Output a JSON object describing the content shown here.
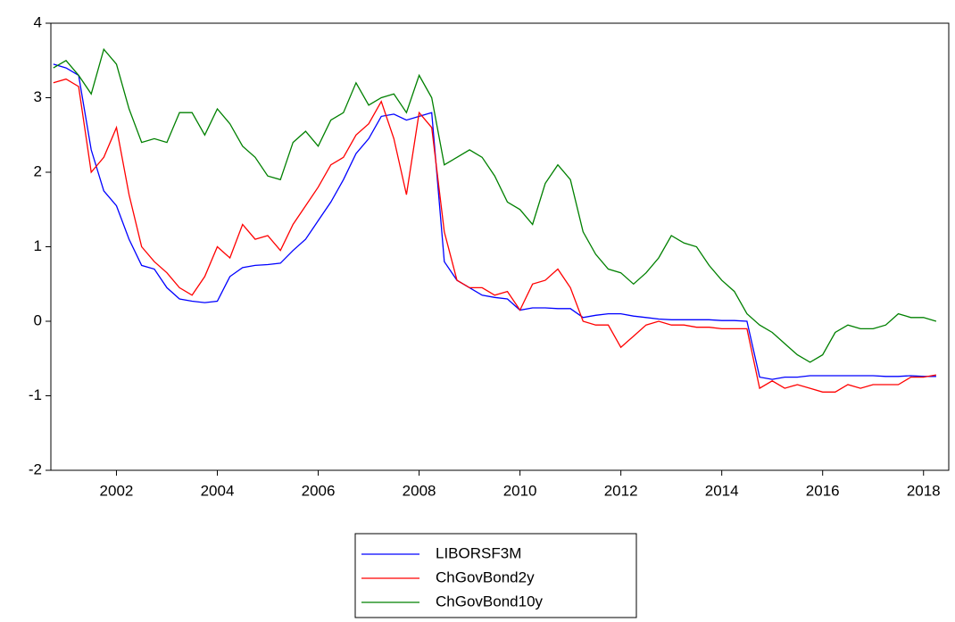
{
  "chart_data": {
    "type": "line",
    "x": [
      2001.25,
      2001.5,
      2001.75,
      2002.0,
      2002.25,
      2002.5,
      2002.75,
      2003.0,
      2003.25,
      2003.5,
      2003.75,
      2004.0,
      2004.25,
      2004.5,
      2004.75,
      2005.0,
      2005.25,
      2005.5,
      2005.75,
      2006.0,
      2006.25,
      2006.5,
      2006.75,
      2007.0,
      2007.25,
      2007.5,
      2007.75,
      2008.0,
      2008.25,
      2008.5,
      2008.75,
      2009.0,
      2009.25,
      2009.5,
      2009.75,
      2010.0,
      2010.25,
      2010.5,
      2010.75,
      2011.0,
      2011.25,
      2011.5,
      2011.75,
      2012.0,
      2012.25,
      2012.5,
      2012.75,
      2013.0,
      2013.25,
      2013.5,
      2013.75,
      2014.0,
      2014.25,
      2014.5,
      2014.75,
      2015.0,
      2015.25,
      2015.5,
      2015.75,
      2016.0,
      2016.25,
      2016.5,
      2016.75,
      2017.0,
      2017.25,
      2017.5,
      2017.75,
      2018.0,
      2018.25,
      2018.5,
      2018.75
    ],
    "series": [
      {
        "name": "LIBORSF3M",
        "color": "#0000ff",
        "values": [
          3.45,
          3.4,
          3.3,
          2.3,
          1.75,
          1.55,
          1.1,
          0.75,
          0.7,
          0.45,
          0.3,
          0.27,
          0.25,
          0.27,
          0.6,
          0.72,
          0.75,
          0.76,
          0.78,
          0.95,
          1.1,
          1.35,
          1.6,
          1.9,
          2.25,
          2.45,
          2.75,
          2.78,
          2.7,
          2.75,
          2.8,
          0.8,
          0.55,
          0.45,
          0.35,
          0.32,
          0.3,
          0.15,
          0.18,
          0.18,
          0.17,
          0.17,
          0.05,
          0.08,
          0.1,
          0.1,
          0.07,
          0.05,
          0.03,
          0.02,
          0.02,
          0.02,
          0.02,
          0.01,
          0.01,
          0.0,
          -0.75,
          -0.78,
          -0.75,
          -0.75,
          -0.73,
          -0.73,
          -0.73,
          -0.73,
          -0.73,
          -0.73,
          -0.74,
          -0.74,
          -0.73,
          -0.74,
          -0.74
        ]
      },
      {
        "name": "ChGovBond2y",
        "color": "#ff0000",
        "values": [
          3.2,
          3.25,
          3.15,
          2.0,
          2.2,
          2.6,
          1.7,
          1.0,
          0.8,
          0.65,
          0.45,
          0.35,
          0.6,
          1.0,
          0.85,
          1.3,
          1.1,
          1.15,
          0.95,
          1.3,
          1.55,
          1.8,
          2.1,
          2.2,
          2.5,
          2.65,
          2.95,
          2.45,
          1.7,
          2.8,
          2.6,
          1.2,
          0.55,
          0.45,
          0.45,
          0.35,
          0.4,
          0.15,
          0.5,
          0.55,
          0.7,
          0.45,
          0.0,
          -0.05,
          -0.05,
          -0.35,
          -0.2,
          -0.05,
          0.0,
          -0.05,
          -0.05,
          -0.08,
          -0.08,
          -0.1,
          -0.1,
          -0.1,
          -0.9,
          -0.8,
          -0.9,
          -0.85,
          -0.9,
          -0.95,
          -0.95,
          -0.85,
          -0.9,
          -0.85,
          -0.85,
          -0.85,
          -0.75,
          -0.75,
          -0.72
        ]
      },
      {
        "name": "ChGovBond10y",
        "color": "#008000",
        "values": [
          3.4,
          3.5,
          3.3,
          3.05,
          3.65,
          3.45,
          2.85,
          2.4,
          2.45,
          2.4,
          2.8,
          2.8,
          2.5,
          2.85,
          2.65,
          2.35,
          2.2,
          1.95,
          1.9,
          2.4,
          2.55,
          2.35,
          2.7,
          2.8,
          3.2,
          2.9,
          3.0,
          3.05,
          2.8,
          3.3,
          3.0,
          2.1,
          2.2,
          2.3,
          2.2,
          1.95,
          1.6,
          1.5,
          1.3,
          1.85,
          2.1,
          1.9,
          1.2,
          0.9,
          0.7,
          0.65,
          0.5,
          0.65,
          0.85,
          1.15,
          1.05,
          1.0,
          0.75,
          0.55,
          0.4,
          0.1,
          -0.05,
          -0.15,
          -0.3,
          -0.45,
          -0.55,
          -0.45,
          -0.15,
          -0.05,
          -0.1,
          -0.1,
          -0.05,
          0.1,
          0.05,
          0.05,
          0.0
        ]
      }
    ],
    "xlim": [
      2001.2,
      2019.0
    ],
    "xticks": [
      {
        "value": 2002.5,
        "label": "2002"
      },
      {
        "value": 2004.5,
        "label": "2004"
      },
      {
        "value": 2006.5,
        "label": "2006"
      },
      {
        "value": 2008.5,
        "label": "2008"
      },
      {
        "value": 2010.5,
        "label": "2010"
      },
      {
        "value": 2012.5,
        "label": "2012"
      },
      {
        "value": 2014.5,
        "label": "2014"
      },
      {
        "value": 2016.5,
        "label": "2016"
      },
      {
        "value": 2018.5,
        "label": "2018"
      }
    ],
    "ylim": [
      -2,
      4
    ],
    "yticks": [
      -2,
      -1,
      0,
      1,
      2,
      3,
      4
    ],
    "grid": false,
    "legend": "bottom"
  }
}
